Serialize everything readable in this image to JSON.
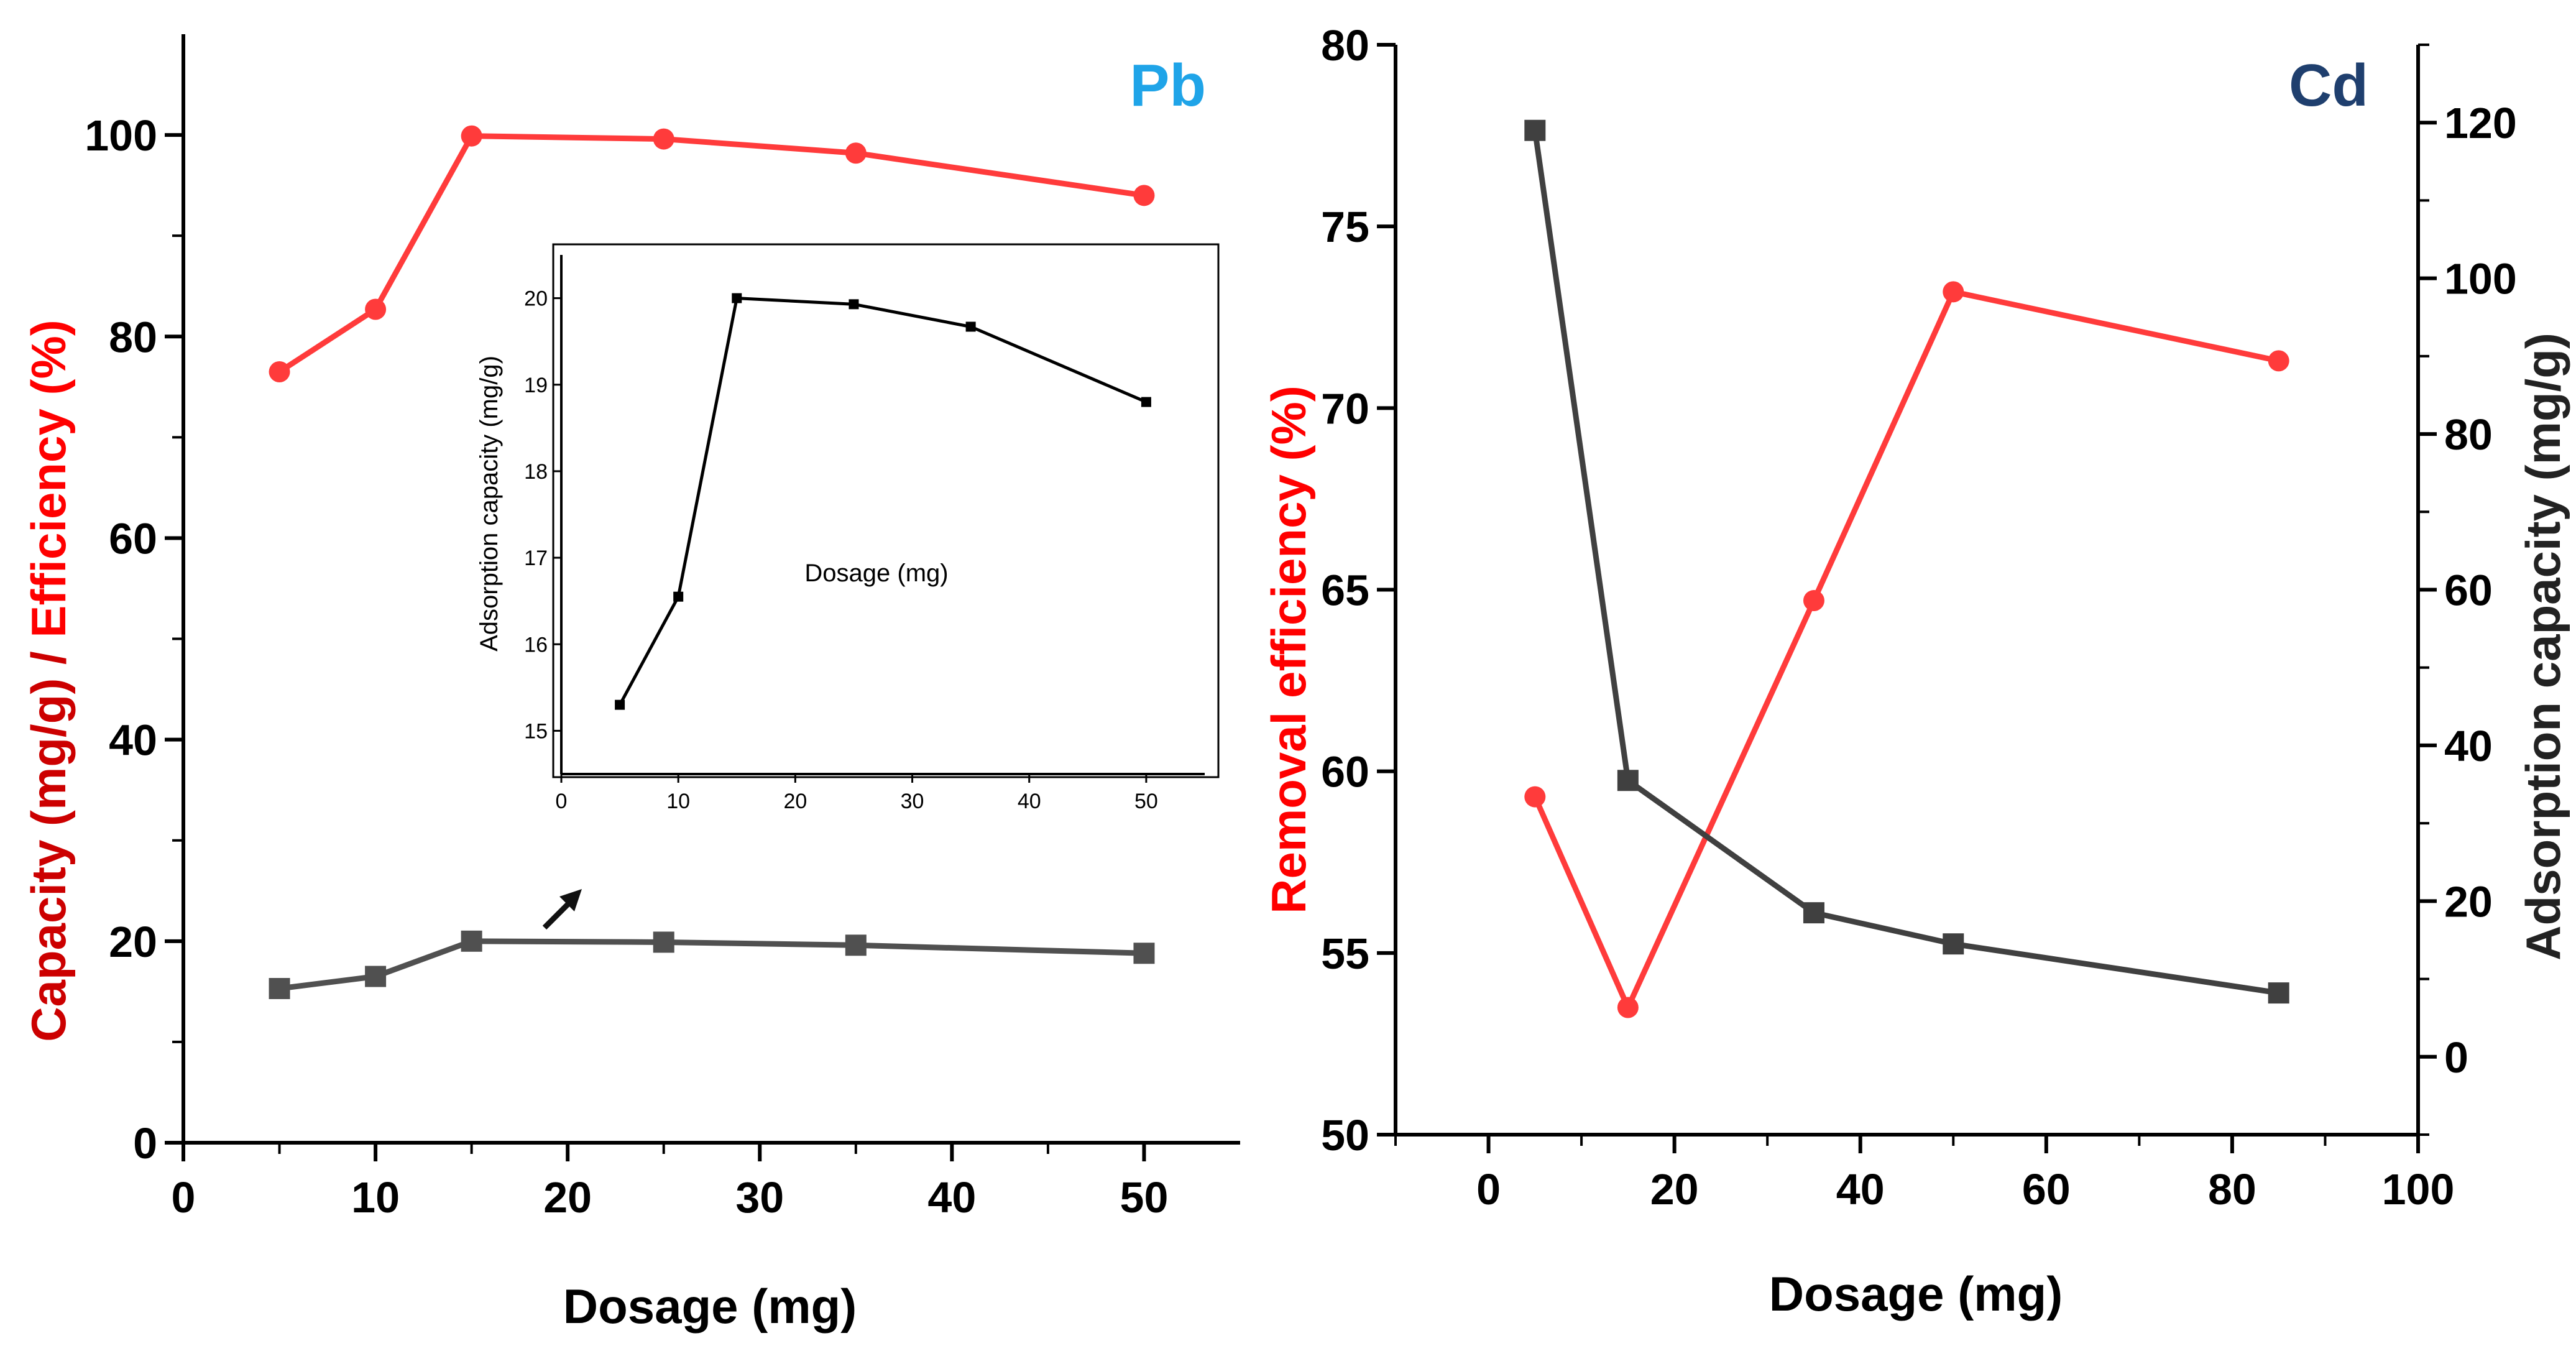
{
  "chart_data": [
    {
      "type": "line",
      "id": "pb",
      "panel_label": "Pb",
      "xlabel": "Dosage (mg)",
      "ylabel_parts": [
        {
          "text": "Capacity (mg/g) / ",
          "color": "#cc0000"
        },
        {
          "text": "Efficiency (%)",
          "color": "#ff0000"
        }
      ],
      "xlim": [
        0,
        55
      ],
      "ylim": [
        0,
        110
      ],
      "xticks": [
        0,
        10,
        20,
        30,
        40,
        50
      ],
      "yticks": [
        0,
        20,
        40,
        60,
        80,
        100
      ],
      "series": [
        {
          "name": "Efficiency (%)",
          "color": "#ff3b3b",
          "marker": "circle",
          "x": [
            5,
            10,
            15,
            25,
            35,
            50
          ],
          "y": [
            76.5,
            82.7,
            99.9,
            99.6,
            98.2,
            94.0
          ]
        },
        {
          "name": "Capacity (mg/g)",
          "color": "#505050",
          "marker": "square",
          "x": [
            5,
            10,
            15,
            25,
            35,
            50
          ],
          "y": [
            15.3,
            16.5,
            20.0,
            19.9,
            19.6,
            18.8
          ]
        }
      ],
      "inset": {
        "type": "line",
        "xlabel": "Dosage (mg)",
        "ylabel": "Adsorption capacity (mg/g)",
        "xlim": [
          0,
          55
        ],
        "ylim": [
          14.5,
          20.5
        ],
        "xticks": [
          0,
          10,
          20,
          30,
          40,
          50
        ],
        "yticks": [
          15,
          16,
          17,
          18,
          19,
          20
        ],
        "series": [
          {
            "name": "Adsorption capacity",
            "color": "#000000",
            "marker": "square",
            "x": [
              5,
              10,
              15,
              25,
              35,
              50
            ],
            "y": [
              15.3,
              16.55,
              20.0,
              19.93,
              19.67,
              18.8
            ]
          }
        ]
      }
    },
    {
      "type": "line",
      "id": "cd",
      "panel_label": "Cd",
      "xlabel": "Dosage (mg)",
      "ylabel_left": "Removal efficiency (%)",
      "ylabel_right": "Adsorption capacity (mg/g)",
      "xlim": [
        -10,
        100
      ],
      "ylim_left": [
        50,
        80
      ],
      "ylim_right": [
        -10,
        130
      ],
      "xticks": [
        0,
        20,
        40,
        60,
        80,
        100
      ],
      "yticks_left": [
        50,
        55,
        60,
        65,
        70,
        75,
        80
      ],
      "yticks_right": [
        0,
        20,
        40,
        60,
        80,
        100,
        120
      ],
      "series": [
        {
          "name": "Removal efficiency (%)",
          "axis": "left",
          "color": "#ff3b3b",
          "marker": "circle",
          "x": [
            5,
            15,
            35,
            50,
            85
          ],
          "y": [
            59.3,
            53.5,
            64.7,
            73.2,
            71.3
          ]
        },
        {
          "name": "Adsorption capacity (mg/g)",
          "axis": "right",
          "color": "#404040",
          "marker": "square",
          "x": [
            5,
            15,
            35,
            50,
            85
          ],
          "y": [
            119,
            35.5,
            18.5,
            14.5,
            8.2
          ]
        }
      ]
    }
  ],
  "colors": {
    "red_title": "#ff0000",
    "pb_label": "#1fa4e8",
    "cd_label": "#1f3f6e",
    "cd_right_title": "#222222"
  }
}
